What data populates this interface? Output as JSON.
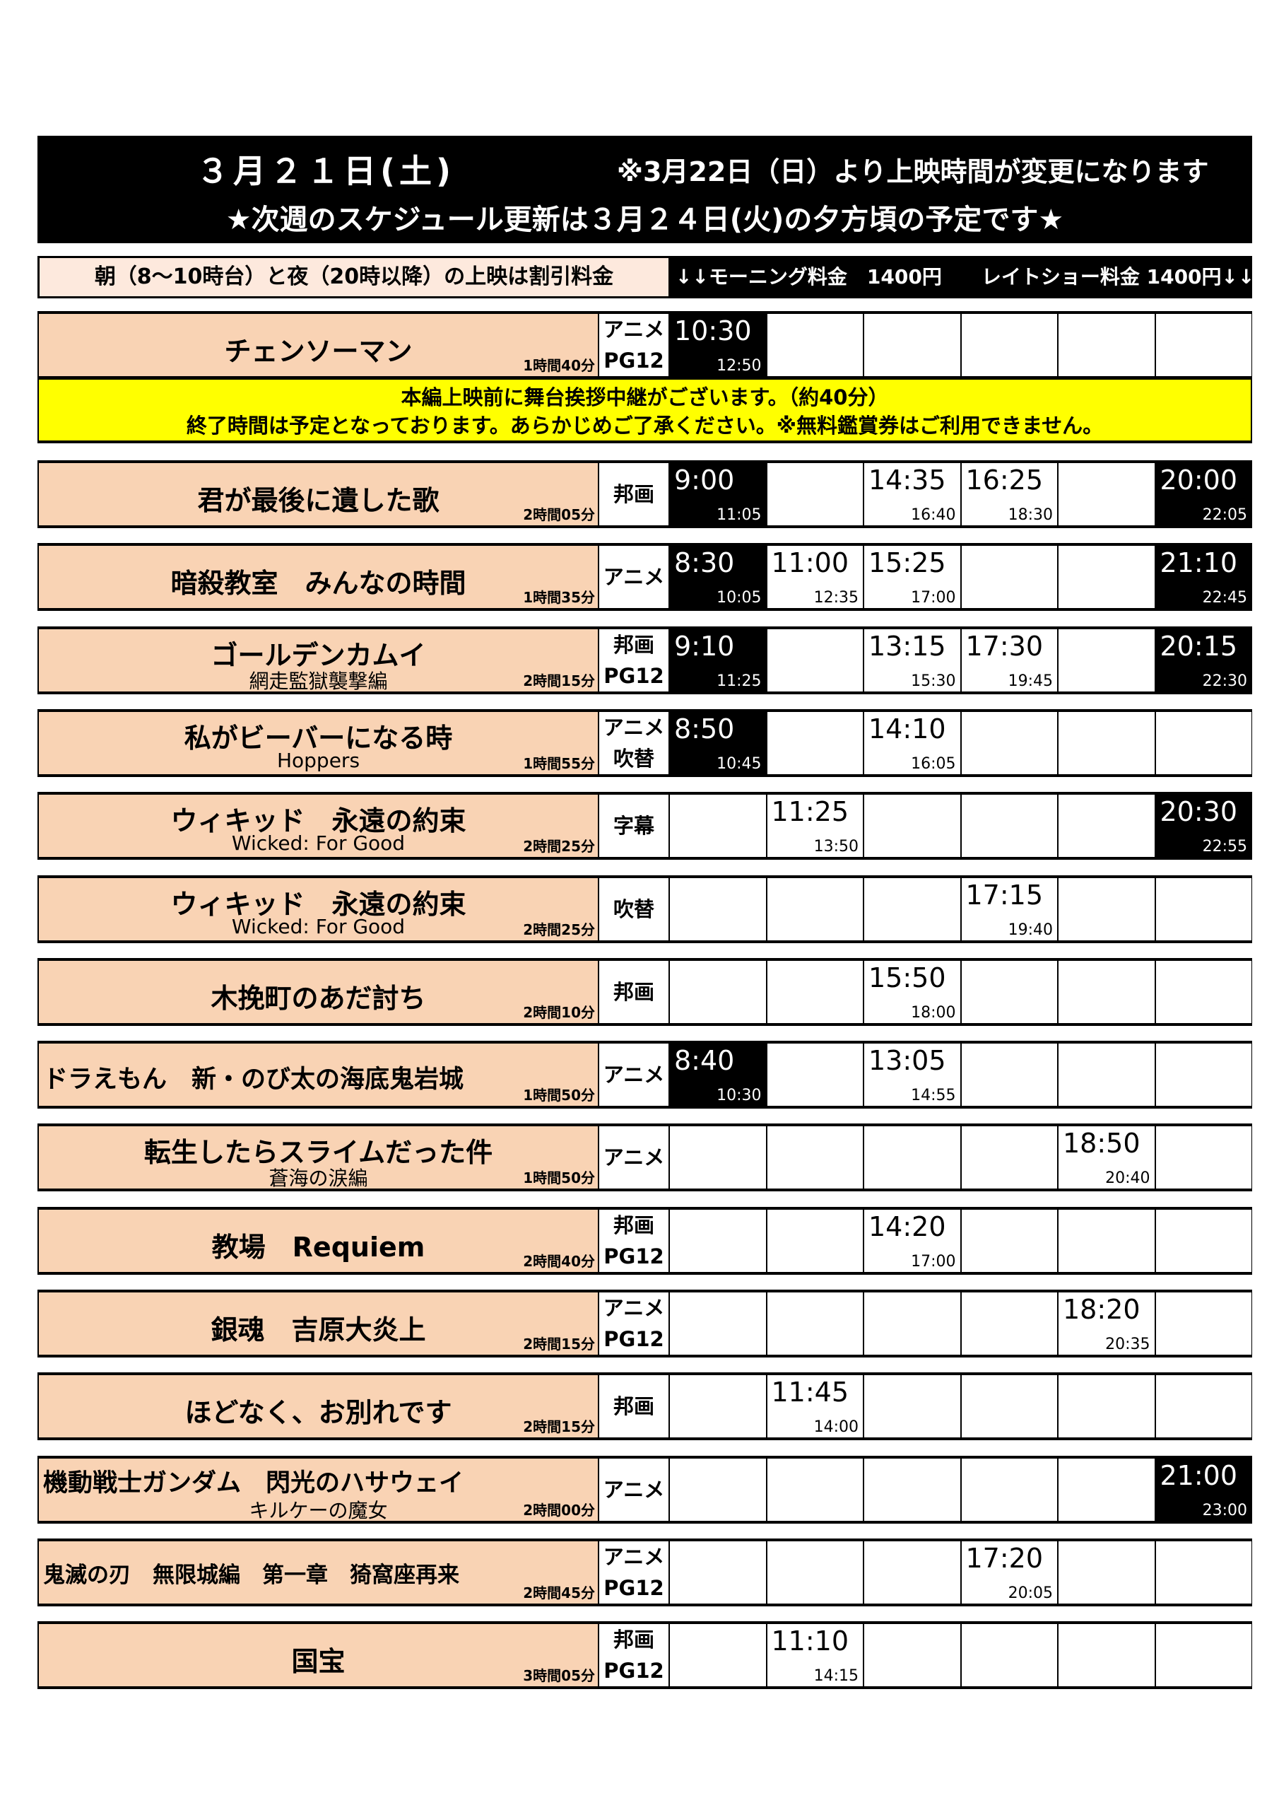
{
  "header": {
    "date": "３月２１日(土)",
    "notice": "※3月22日（日）より上映時間が変更になります",
    "update": "★次週のスケジュール更新は３月２４日(火)の夕方頃の予定です★"
  },
  "price": {
    "left": "朝（8～10時台）と夜（20時以降）の上映は割引料金",
    "right": "↓↓モーニング料金　1400円　　レイトショー料金 1400円↓↓"
  },
  "notice": {
    "line1": "本編上映前に舞台挨拶中継がございます。（約40分）",
    "line2": "終了時間は予定となっております。あらかじめご了承ください。※無料鑑賞券はご利用できません。"
  },
  "colors": {
    "title_bg": "#f9d3b4",
    "notice_bg": "#ffff00",
    "dark_slot": "#000000"
  },
  "movies": [
    {
      "title": "チェンソーマン",
      "sub": "",
      "duration": "1時間40分",
      "types": [
        "アニメ",
        "PG12"
      ],
      "slots": [
        {
          "col": 0,
          "start": "10:30",
          "end": "12:50",
          "dark": true
        }
      ]
    },
    {
      "title": "君が最後に遺した歌",
      "sub": "",
      "duration": "2時間05分",
      "types": [
        "邦画"
      ],
      "slots": [
        {
          "col": 0,
          "start": "9:00",
          "end": "11:05",
          "dark": true
        },
        {
          "col": 2,
          "start": "14:35",
          "end": "16:40"
        },
        {
          "col": 3,
          "start": "16:25",
          "end": "18:30"
        },
        {
          "col": 5,
          "start": "20:00",
          "end": "22:05",
          "dark": true
        }
      ]
    },
    {
      "title": "暗殺教室　みんなの時間",
      "sub": "",
      "duration": "1時間35分",
      "types": [
        "アニメ"
      ],
      "slots": [
        {
          "col": 0,
          "start": "8:30",
          "end": "10:05",
          "dark": true
        },
        {
          "col": 1,
          "start": "11:00",
          "end": "12:35"
        },
        {
          "col": 2,
          "start": "15:25",
          "end": "17:00"
        },
        {
          "col": 5,
          "start": "21:10",
          "end": "22:45",
          "dark": true
        }
      ]
    },
    {
      "title": "ゴールデンカムイ",
      "sub": "網走監獄襲撃編",
      "duration": "2時間15分",
      "types": [
        "邦画",
        "PG12"
      ],
      "slots": [
        {
          "col": 0,
          "start": "9:10",
          "end": "11:25",
          "dark": true
        },
        {
          "col": 2,
          "start": "13:15",
          "end": "15:30"
        },
        {
          "col": 3,
          "start": "17:30",
          "end": "19:45"
        },
        {
          "col": 5,
          "start": "20:15",
          "end": "22:30",
          "dark": true
        }
      ]
    },
    {
      "title": "私がビーバーになる時",
      "sub": "Hoppers",
      "duration": "1時間55分",
      "types": [
        "アニメ",
        "吹替"
      ],
      "slots": [
        {
          "col": 0,
          "start": "8:50",
          "end": "10:45",
          "dark": true
        },
        {
          "col": 2,
          "start": "14:10",
          "end": "16:05"
        }
      ]
    },
    {
      "title": "ウィキッド　永遠の約束",
      "sub": "Wicked: For Good",
      "duration": "2時間25分",
      "types": [
        "字幕"
      ],
      "slots": [
        {
          "col": 1,
          "start": "11:25",
          "end": "13:50"
        },
        {
          "col": 5,
          "start": "20:30",
          "end": "22:55",
          "dark": true
        }
      ]
    },
    {
      "title": "ウィキッド　永遠の約束",
      "sub": "Wicked: For Good",
      "duration": "2時間25分",
      "types": [
        "吹替"
      ],
      "slots": [
        {
          "col": 3,
          "start": "17:15",
          "end": "19:40"
        }
      ]
    },
    {
      "title": "木挽町のあだ討ち",
      "sub": "",
      "duration": "2時間10分",
      "types": [
        "邦画"
      ],
      "slots": [
        {
          "col": 2,
          "start": "15:50",
          "end": "18:00"
        }
      ]
    },
    {
      "title": "ドラえもん　新・のび太の海底鬼岩城",
      "sub": "",
      "duration": "1時間50分",
      "types": [
        "アニメ"
      ],
      "slots": [
        {
          "col": 0,
          "start": "8:40",
          "end": "10:30",
          "dark": true
        },
        {
          "col": 2,
          "start": "13:05",
          "end": "14:55"
        }
      ]
    },
    {
      "title": "転生したらスライムだった件",
      "sub": "蒼海の涙編",
      "duration": "1時間50分",
      "types": [
        "アニメ"
      ],
      "slots": [
        {
          "col": 4,
          "start": "18:50",
          "end": "20:40"
        }
      ]
    },
    {
      "title": "教場　Requiem",
      "sub": "",
      "duration": "2時間40分",
      "types": [
        "邦画",
        "PG12"
      ],
      "slots": [
        {
          "col": 2,
          "start": "14:20",
          "end": "17:00"
        }
      ]
    },
    {
      "title": "銀魂　吉原大炎上",
      "sub": "",
      "duration": "2時間15分",
      "types": [
        "アニメ",
        "PG12"
      ],
      "slots": [
        {
          "col": 4,
          "start": "18:20",
          "end": "20:35"
        }
      ]
    },
    {
      "title": "ほどなく、お別れです",
      "sub": "",
      "duration": "2時間15分",
      "types": [
        "邦画"
      ],
      "slots": [
        {
          "col": 1,
          "start": "11:45",
          "end": "14:00"
        }
      ]
    },
    {
      "title": "機動戦士ガンダム　閃光のハサウェイ",
      "sub": "キルケーの魔女",
      "duration": "2時間00分",
      "types": [
        "アニメ"
      ],
      "slots": [
        {
          "col": 5,
          "start": "21:00",
          "end": "23:00",
          "dark": true
        }
      ]
    },
    {
      "title": "鬼滅の刃　無限城編　第一章　猗窩座再来",
      "sub": "",
      "duration": "2時間45分",
      "types": [
        "アニメ",
        "PG12"
      ],
      "slots": [
        {
          "col": 3,
          "start": "17:20",
          "end": "20:05"
        }
      ]
    },
    {
      "title": "国宝",
      "sub": "",
      "duration": "3時間05分",
      "types": [
        "邦画",
        "PG12"
      ],
      "slots": [
        {
          "col": 1,
          "start": "11:10",
          "end": "14:15"
        }
      ]
    }
  ]
}
